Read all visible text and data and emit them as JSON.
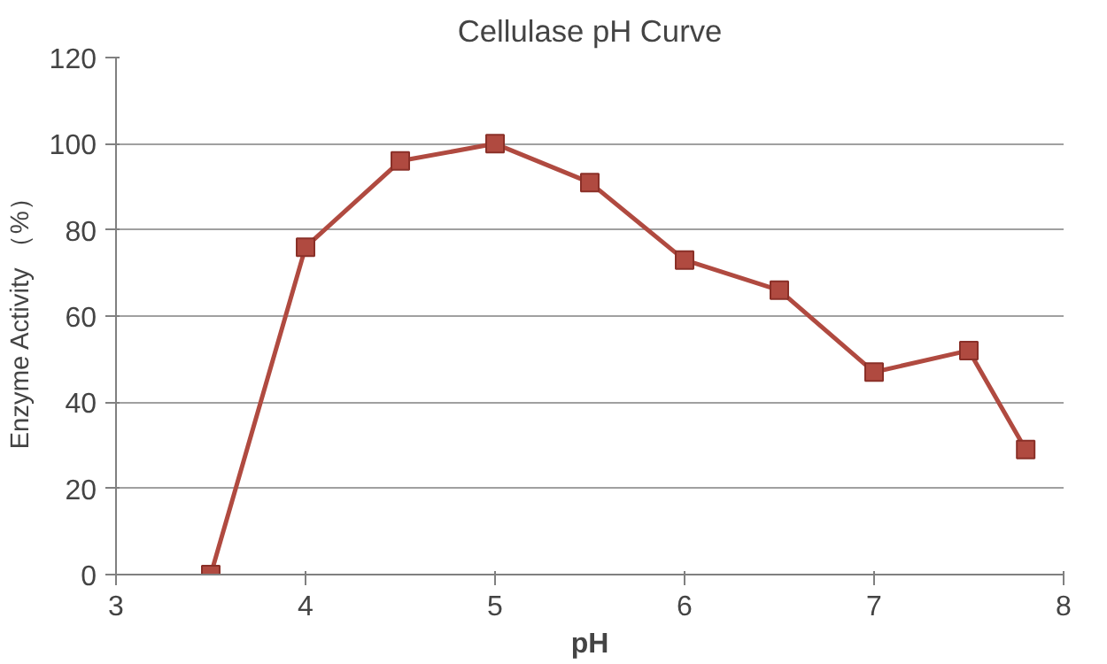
{
  "chart_data": {
    "type": "line",
    "title": "Cellulase pH Curve",
    "xlabel": "pH",
    "ylabel": "Enzyme Activity （%）",
    "x": [
      3.5,
      4,
      4.5,
      5,
      5.5,
      6,
      6.5,
      7,
      7.5,
      7.8
    ],
    "series": [
      {
        "color": "#b04a40",
        "values": [
          0,
          76,
          96,
          100,
          91,
          73,
          66,
          47,
          52,
          29
        ]
      }
    ],
    "xlim": [
      3,
      8
    ],
    "xticks": [
      3,
      4,
      5,
      6,
      7,
      8
    ],
    "ylim": [
      0,
      120
    ],
    "yticks": [
      0,
      20,
      40,
      60,
      80,
      100,
      120
    ],
    "grid": "y",
    "marker": "square",
    "line_style": "solid"
  }
}
